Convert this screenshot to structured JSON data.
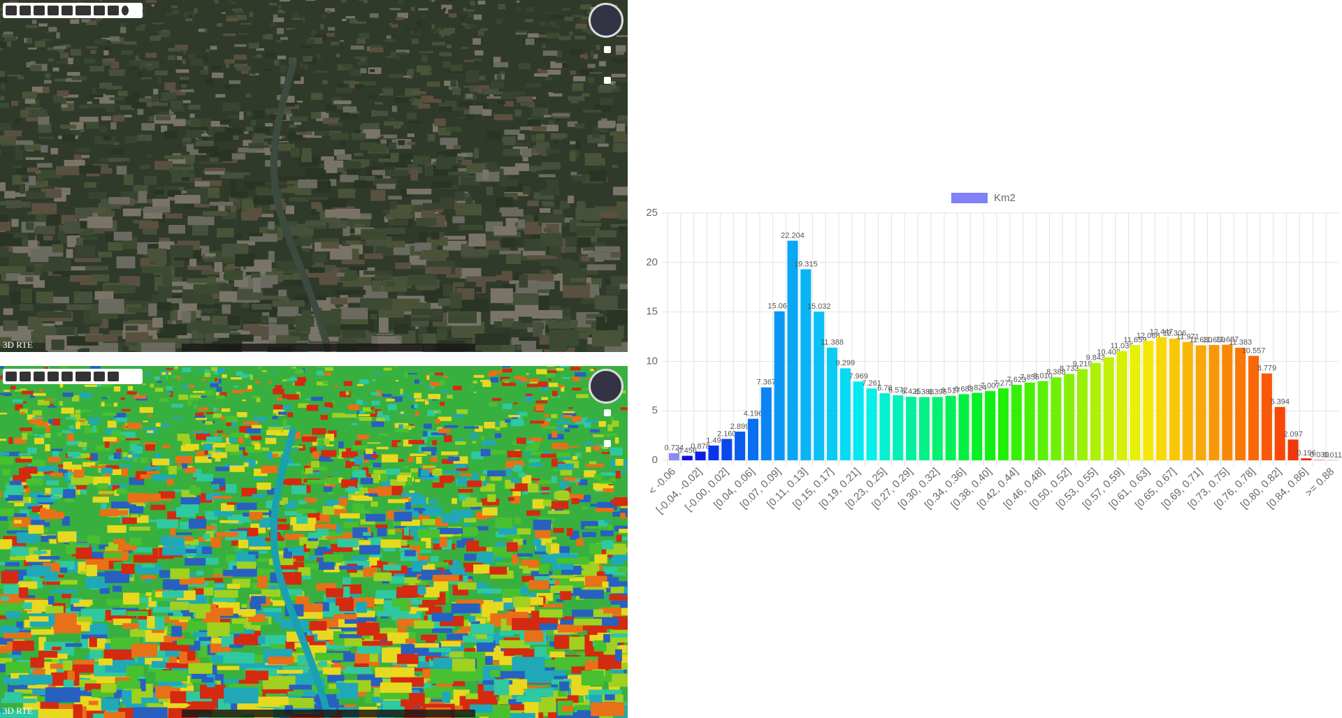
{
  "maps": [
    {
      "label": "3D RTE"
    },
    {
      "label": "3D RTE"
    }
  ],
  "chart_data": {
    "type": "bar",
    "categories": [
      "< -0.06",
      null,
      "[-0.04, -0.02]",
      null,
      "[-0.00, 0.02]",
      null,
      "[0.04, 0.06]",
      null,
      "[0.07, 0.09]",
      null,
      "[0.11, 0.13]",
      null,
      "[0.15, 0.17]",
      null,
      "[0.19, 0.21]",
      null,
      "[0.23, 0.25]",
      null,
      "[0.27, 0.29]",
      null,
      "[0.30, 0.32]",
      null,
      "[0.34, 0.36]",
      null,
      "[0.38, 0.40]",
      null,
      "[0.42, 0.44]",
      null,
      "[0.46, 0.48]",
      null,
      "[0.50, 0.52]",
      null,
      "[0.53, 0.55]",
      null,
      "[0.57, 0.59]",
      null,
      "[0.61, 0.63]",
      null,
      "[0.65, 0.67]",
      null,
      "[0.69, 0.71]",
      null,
      "[0.73, 0.75]",
      null,
      "[0.76, 0.78]",
      null,
      "[0.80, 0.82]",
      null,
      "[0.84, 0.86]",
      null,
      ">= 0.88"
    ],
    "series": [
      {
        "name": "Km2",
        "color": "#8080f8",
        "values": [
          0.724,
          0.456,
          0.878,
          1.49,
          2.16,
          2.899,
          4.196,
          7.367,
          15.061,
          22.204,
          19.315,
          15.032,
          11.388,
          9.299,
          7.969,
          7.261,
          6.78,
          6.572,
          6.425,
          6.388,
          6.395,
          6.517,
          6.683,
          6.824,
          7.007,
          7.273,
          7.623,
          7.855,
          8.01,
          8.388,
          8.733,
          9.219,
          9.843,
          10.408,
          11.036,
          11.659,
          12.068,
          12.447,
          12.306,
          11.971,
          11.63,
          11.659,
          11.687,
          11.383,
          10.557,
          8.779,
          5.394,
          2.097,
          0.196,
          0.03,
          0.011
        ],
        "value_labels": [
          "0.724",
          "0.456",
          "0.878",
          "1.49",
          "2.160",
          "2.899",
          "4.196",
          "7.367",
          "15.061",
          "22.204",
          "19.315",
          "15.032",
          "11.388",
          "9.299",
          "7.969",
          "7.261",
          "6.78",
          "6.572",
          "6.425",
          "6.388",
          "6.395",
          "6.517",
          "6.683",
          "6.824",
          "7.007",
          "7.273",
          "7.623",
          "7.855",
          "8.010",
          "8.388",
          "8.733",
          "9.219",
          "9.843",
          "10.408",
          "11.036",
          "11.659",
          "12.068",
          "12.447",
          "12.306",
          "11.971",
          "11.630",
          "11.659",
          "11.687",
          "11.383",
          "10.557",
          "8.779",
          "5.394",
          "2.097",
          "0.196",
          "0.030",
          "0.011"
        ],
        "colors": [
          "#8a8af0",
          "#1010e0",
          "#0a20e8",
          "#0a34ea",
          "#0848ec",
          "#085cee",
          "#0870f0",
          "#0a84f2",
          "#0a98f4",
          "#0aa8f4",
          "#0ab4f4",
          "#0ac0f4",
          "#08ccf4",
          "#06daf4",
          "#04e8f2",
          "#04f0e8",
          "#04f0d0",
          "#04f0b8",
          "#04f0a0",
          "#04f088",
          "#04f070",
          "#04f058",
          "#04f040",
          "#06f028",
          "#10f014",
          "#20f008",
          "#34f008",
          "#48f008",
          "#5cf008",
          "#70f008",
          "#86f008",
          "#9af008",
          "#aef008",
          "#c2f008",
          "#d6f008",
          "#e8f008",
          "#f4e808",
          "#f8d808",
          "#f8c808",
          "#f8b808",
          "#f8a808",
          "#f89808",
          "#f88808",
          "#f87808",
          "#f86808",
          "#f85808",
          "#f84808",
          "#f03808",
          "#e82808",
          "#e01808",
          "#d80808"
        ]
      }
    ],
    "ylim": [
      0,
      25
    ],
    "yticks": [
      0,
      5,
      10,
      15,
      20,
      25
    ],
    "grid": true
  }
}
